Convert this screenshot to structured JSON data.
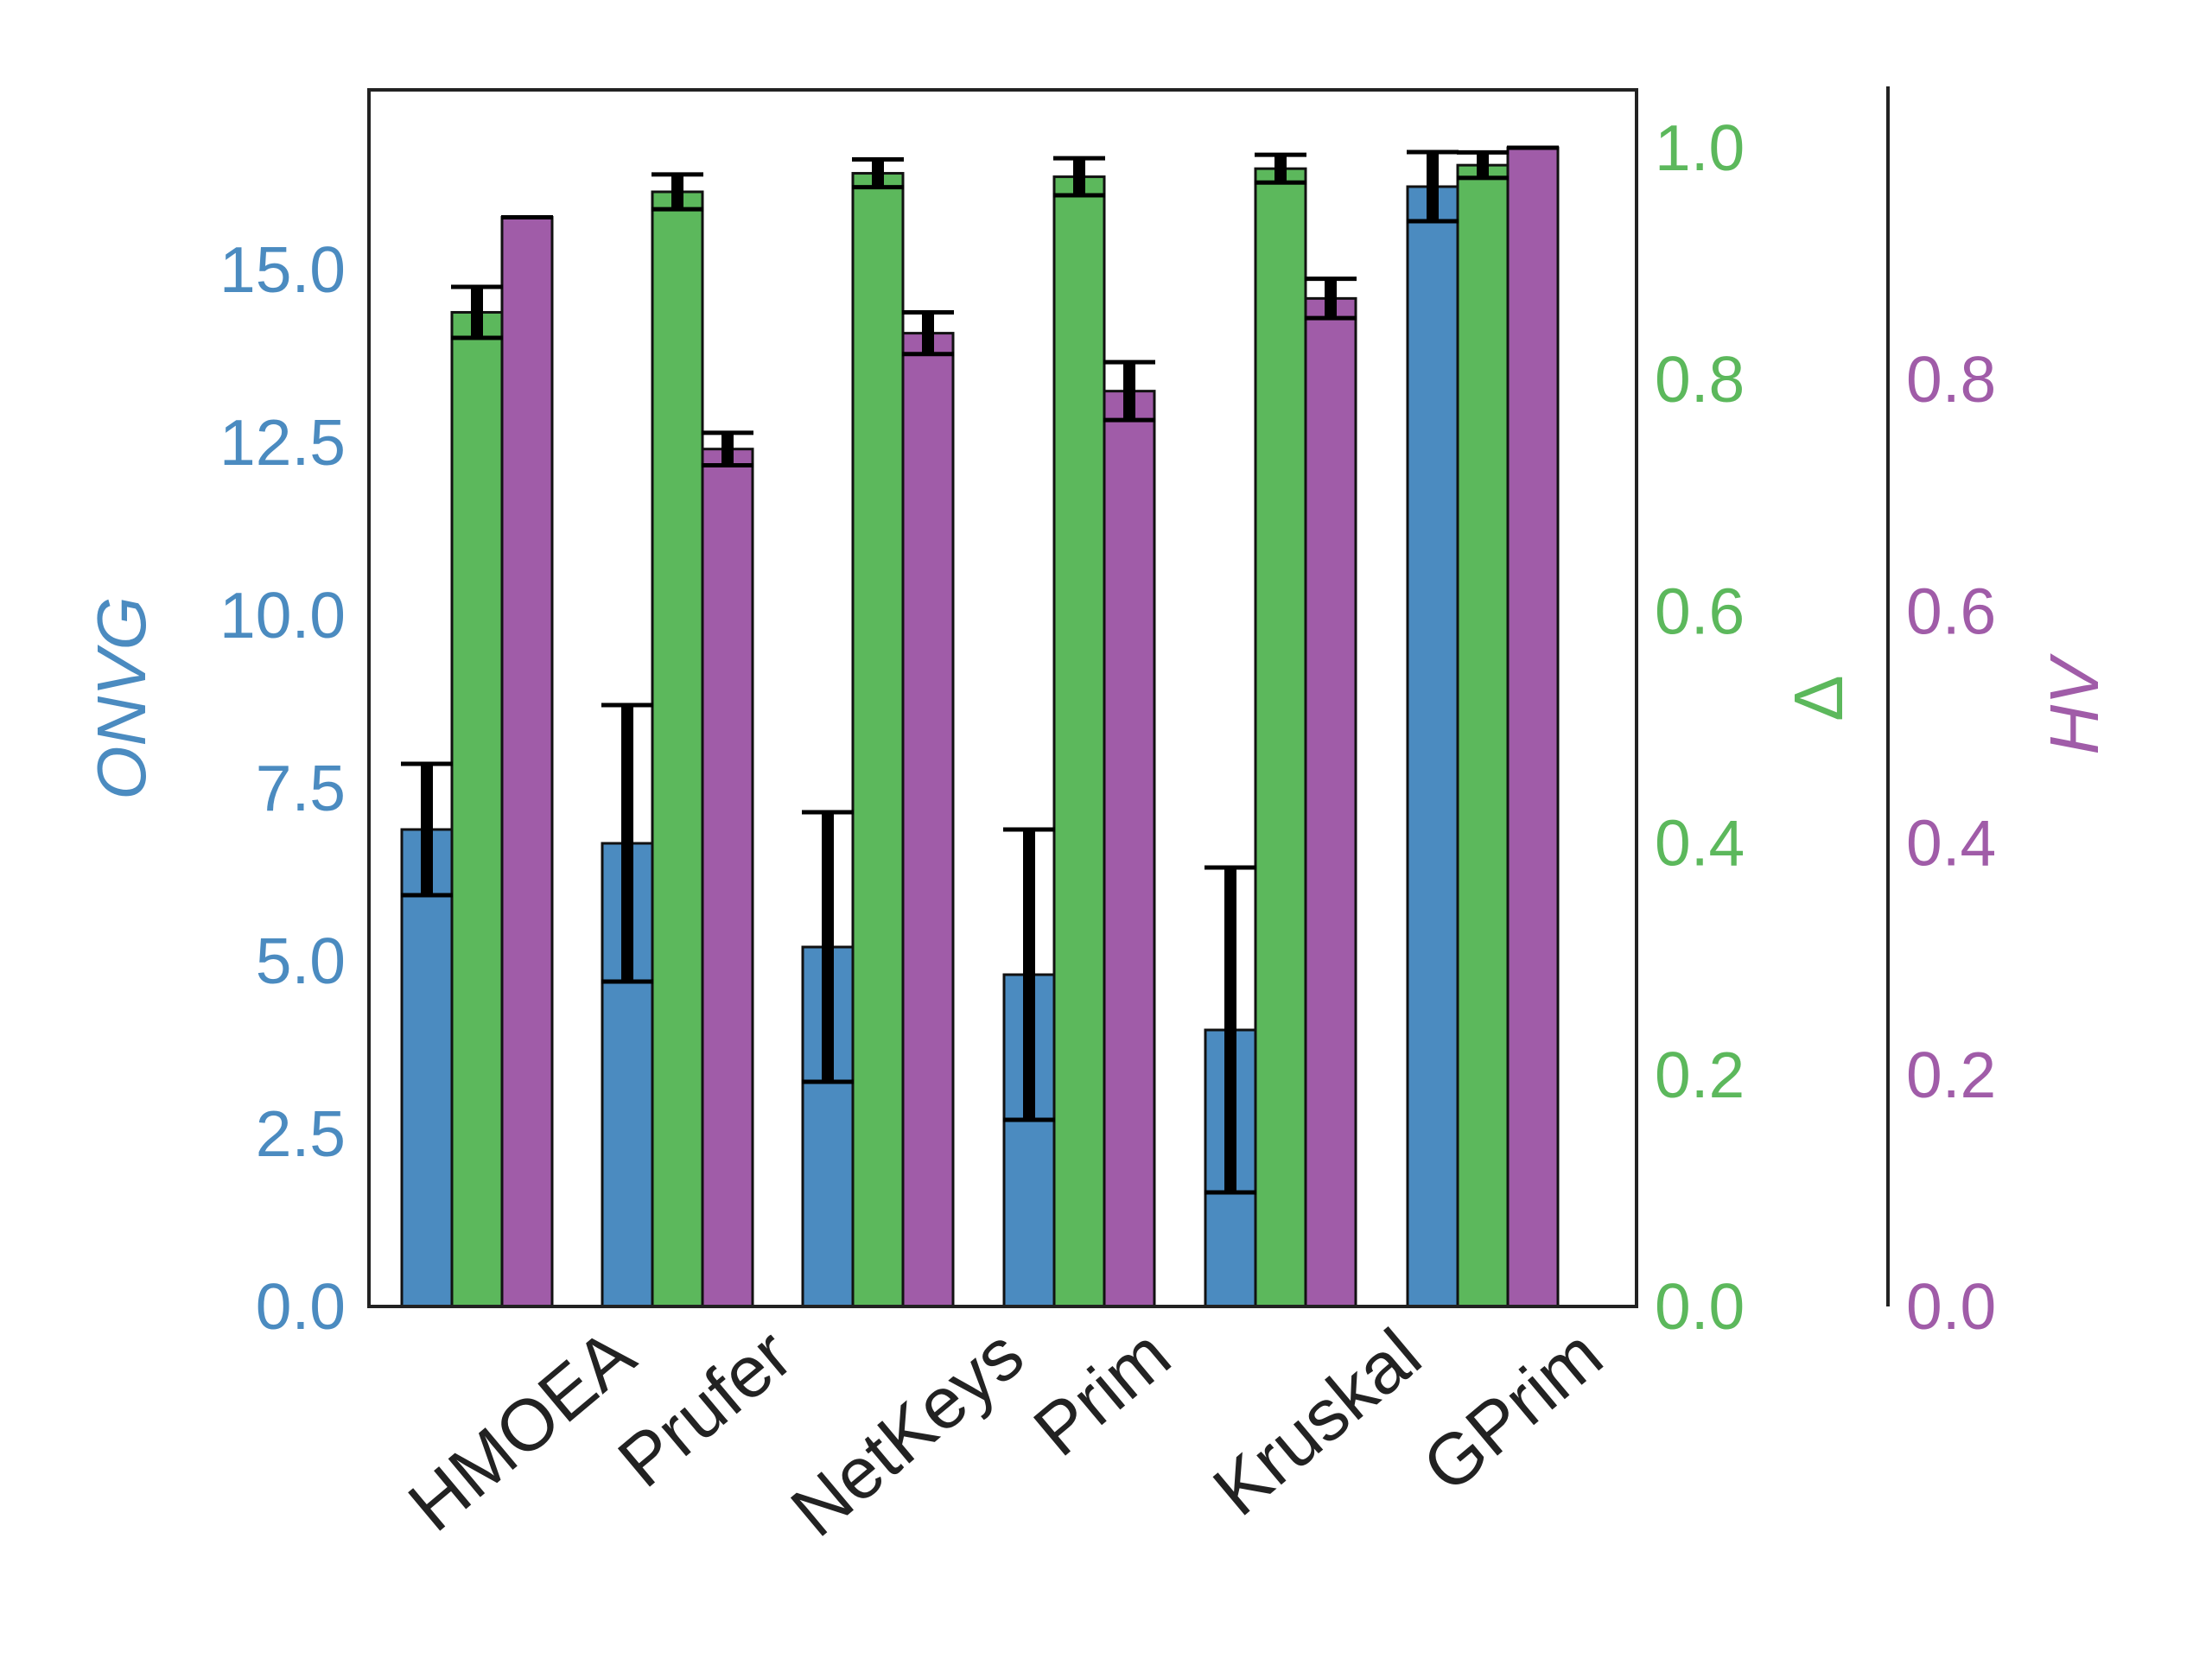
{
  "chart_data": {
    "type": "bar",
    "categories": [
      "HMOEA",
      "Prufer",
      "NetKeys",
      "Prim",
      "Kruskal",
      "GPrim"
    ],
    "axes": {
      "onvg": {
        "label": "ONVG",
        "side": "left",
        "ylim": [
          0,
          17.6
        ],
        "ticks": [
          0,
          2.5,
          5,
          7.5,
          10,
          12.5,
          15
        ],
        "tick_labels": [
          "0.0",
          "2.5",
          "5.0",
          "7.5",
          "10.0",
          "12.5",
          "15.0"
        ]
      },
      "delta": {
        "label": "Δ",
        "side": "right",
        "ylim": [
          0,
          1.05
        ],
        "ticks": [
          0,
          0.2,
          0.4,
          0.6,
          0.8,
          1.0
        ],
        "tick_labels": [
          "0.0",
          "0.2",
          "0.4",
          "0.6",
          "0.8",
          "1.0"
        ]
      },
      "hv": {
        "label": "HV",
        "side": "right-offset",
        "ylim": [
          0,
          1.05
        ],
        "ticks": [
          0,
          0.2,
          0.4,
          0.6,
          0.8
        ],
        "tick_labels": [
          "0.0",
          "0.2",
          "0.4",
          "0.6",
          "0.8"
        ]
      }
    },
    "series": [
      {
        "axis": "onvg",
        "color": "#4b8bc0",
        "values": [
          6.9,
          6.7,
          5.2,
          4.8,
          4.0,
          16.2
        ],
        "errors": [
          0.95,
          2.0,
          1.95,
          2.1,
          2.35,
          0.5
        ]
      },
      {
        "axis": "delta",
        "color": "#5cb85c",
        "values": [
          0.858,
          0.962,
          0.978,
          0.975,
          0.982,
          0.985
        ],
        "errors": [
          0.022,
          0.015,
          0.012,
          0.016,
          0.012,
          0.011
        ]
      },
      {
        "axis": "hv",
        "color": "#a05ca8",
        "values": [
          0.94,
          0.74,
          0.84,
          0.79,
          0.87,
          1.0
        ],
        "errors": [
          0.0,
          0.014,
          0.018,
          0.025,
          0.017,
          0.0
        ]
      }
    ],
    "grid": false
  }
}
